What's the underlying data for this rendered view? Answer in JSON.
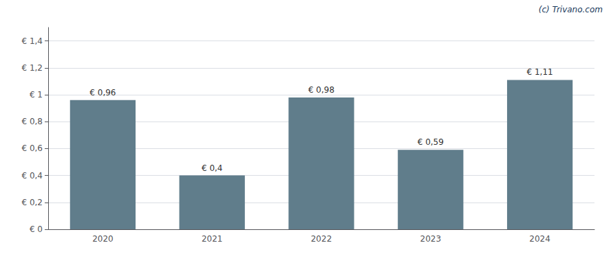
{
  "chart_data": {
    "type": "bar",
    "categories": [
      "2020",
      "2021",
      "2022",
      "2023",
      "2024"
    ],
    "values": [
      0.96,
      0.4,
      0.98,
      0.59,
      1.11
    ],
    "value_labels": [
      "€ 0,96",
      "€ 0,4",
      "€ 0,98",
      "€ 0,59",
      "€ 1,11"
    ],
    "data_labels": true,
    "color": "#607d8b",
    "ylim": [
      0,
      1.5
    ],
    "yticks": [
      {
        "value": 0,
        "label": "€ 0"
      },
      {
        "value": 0.2,
        "label": "€ 0,2"
      },
      {
        "value": 0.4,
        "label": "€ 0,4"
      },
      {
        "value": 0.6,
        "label": "€ 0,6"
      },
      {
        "value": 0.8,
        "label": "€ 0,8"
      },
      {
        "value": 1.0,
        "label": "€ 1"
      },
      {
        "value": 1.2,
        "label": "€ 1,2"
      },
      {
        "value": 1.4,
        "label": "€ 1,4"
      }
    ],
    "grid": true,
    "annotations": [
      {
        "text": "(c) Trivano.com",
        "color": "#1a3a5c"
      }
    ]
  }
}
